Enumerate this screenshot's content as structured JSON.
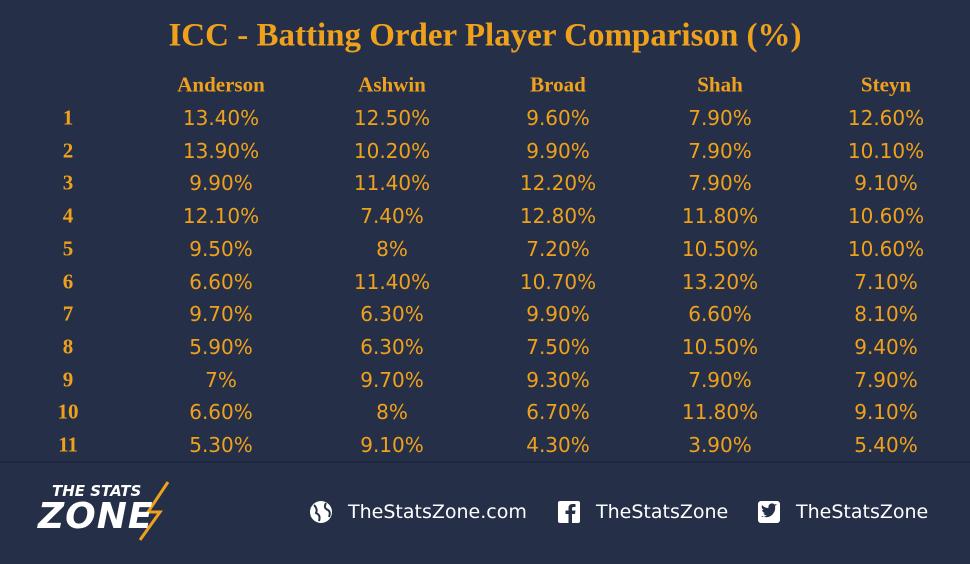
{
  "header": {
    "title": "ICC - Batting Order Player Comparison (%)"
  },
  "table": {
    "columns": [
      "Anderson",
      "Ashwin",
      "Broad",
      "Shah",
      "Steyn"
    ],
    "rows": [
      [
        "1",
        "13.40%",
        "12.50%",
        "9.60%",
        "7.90%",
        "12.60%"
      ],
      [
        "2",
        "13.90%",
        "10.20%",
        "9.90%",
        "7.90%",
        "10.10%"
      ],
      [
        "3",
        "9.90%",
        "11.40%",
        "12.20%",
        "7.90%",
        "9.10%"
      ],
      [
        "4",
        "12.10%",
        "7.40%",
        "12.80%",
        "11.80%",
        "10.60%"
      ],
      [
        "5",
        "9.50%",
        "8%",
        "7.20%",
        "10.50%",
        "10.60%"
      ],
      [
        "6",
        "6.60%",
        "11.40%",
        "10.70%",
        "13.20%",
        "7.10%"
      ],
      [
        "7",
        "9.70%",
        "6.30%",
        "9.90%",
        "6.60%",
        "8.10%"
      ],
      [
        "8",
        "5.90%",
        "6.30%",
        "7.50%",
        "10.50%",
        "9.40%"
      ],
      [
        "9",
        "7%",
        "9.70%",
        "9.30%",
        "7.90%",
        "7.90%"
      ],
      [
        "10",
        "6.60%",
        "8%",
        "6.70%",
        "11.80%",
        "9.10%"
      ],
      [
        "11",
        "5.30%",
        "9.10%",
        "4.30%",
        "3.90%",
        "5.40%"
      ]
    ]
  },
  "footer": {
    "logo_top": "THE STATS",
    "logo_bottom": "ZONE",
    "links": [
      "TheStatsZone.com",
      "TheStatsZone",
      "TheStatsZone"
    ]
  }
}
